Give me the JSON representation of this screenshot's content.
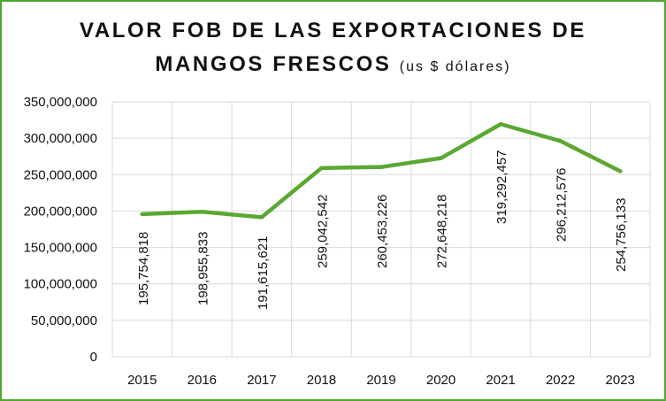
{
  "chart_data": {
    "type": "line",
    "title_line1": "VALOR FOB DE LAS EXPORTACIONES DE",
    "title_line2": "MANGOS FRESCOS",
    "title_unit": "(us $ dólares)",
    "categories": [
      "2015",
      "2016",
      "2017",
      "2018",
      "2019",
      "2020",
      "2021",
      "2022",
      "2023"
    ],
    "values": [
      195754818,
      198955833,
      191615621,
      259042542,
      260453226,
      272648218,
      319292457,
      296212576,
      254756133
    ],
    "value_labels": [
      "195,754,818",
      "198,955,833",
      "191,615,621",
      "259,042,542",
      "260,453,226",
      "272,648,218",
      "319,292,457",
      "296,212,576",
      "254,756,133"
    ],
    "ylim": [
      0,
      350000000
    ],
    "yticks": [
      0,
      50000000,
      100000000,
      150000000,
      200000000,
      250000000,
      300000000,
      350000000
    ],
    "ytick_labels": [
      "0",
      "50,000,000",
      "100,000,000",
      "150,000,000",
      "200,000,000",
      "250,000,000",
      "300,000,000",
      "350,000,000"
    ],
    "grid": true,
    "legend": "none",
    "line_color": "#5aa832",
    "frame_color": "#4ea72e",
    "grid_color": "#d9d9d9"
  }
}
